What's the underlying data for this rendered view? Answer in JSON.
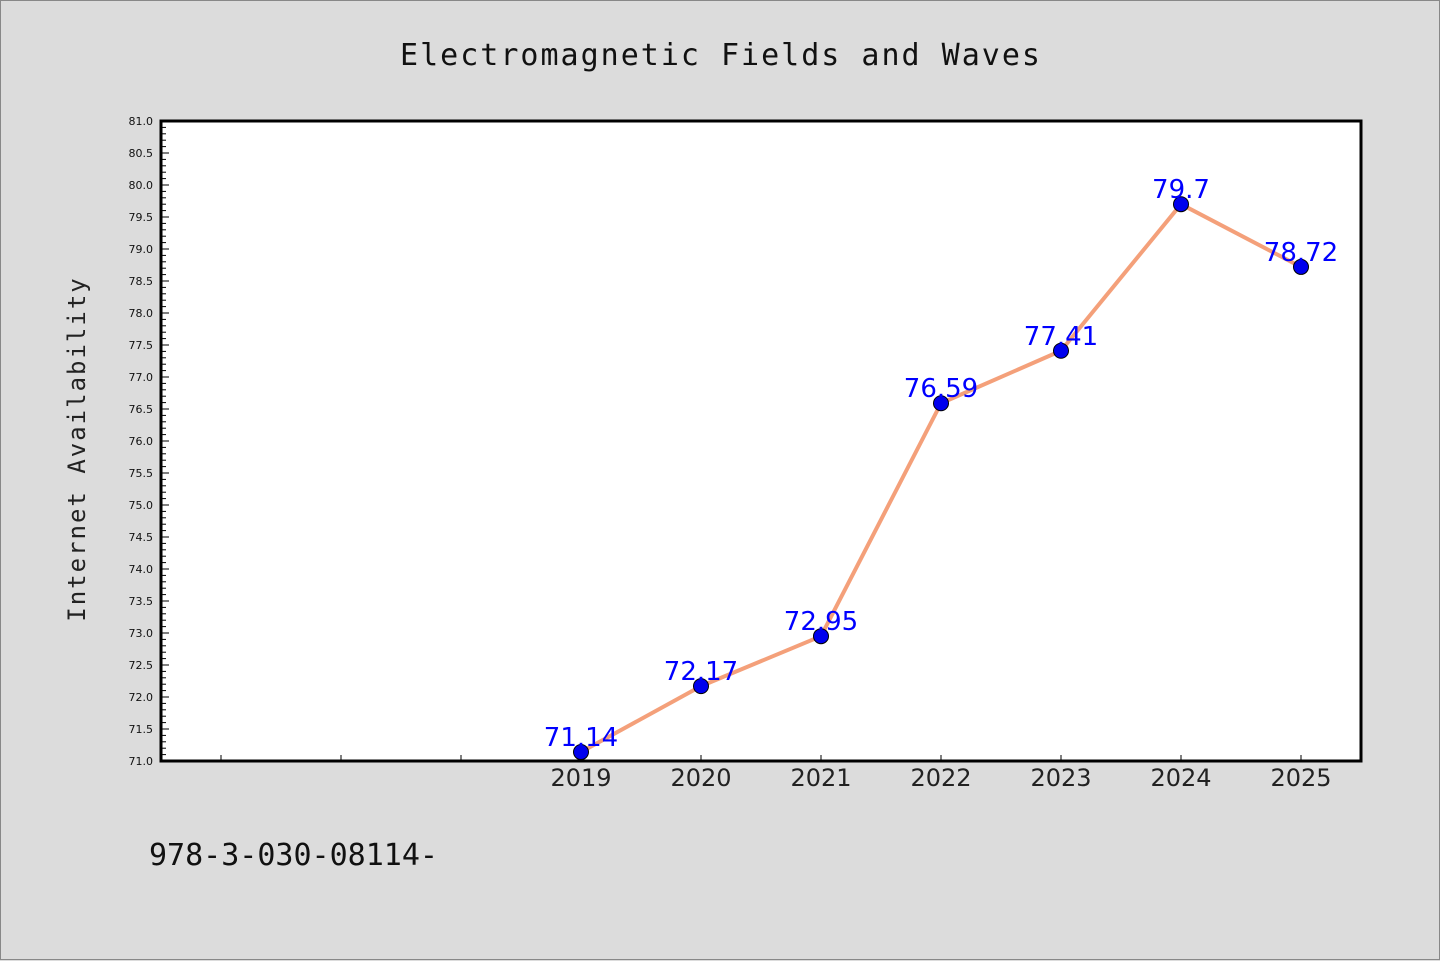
{
  "chart_data": {
    "type": "line",
    "title": "Electromagnetic Fields and Waves",
    "xlabel": "",
    "ylabel": "Internet Availability",
    "x_slots": 10,
    "categories": [
      "2019",
      "2020",
      "2021",
      "2022",
      "2023",
      "2024",
      "2025"
    ],
    "series": [
      {
        "values": [
          71.14,
          72.17,
          72.95,
          76.59,
          77.41,
          79.7,
          78.72
        ],
        "line_color": "#f4a07a",
        "marker_color": "#0000ee"
      }
    ],
    "data_labels": [
      "71.14",
      "72.17",
      "72.95",
      "76.59",
      "77.41",
      "79.7",
      "78.72"
    ],
    "data_label_color": "#0000ff",
    "ylim": [
      71.0,
      81.0
    ],
    "yticks": [
      "71.0",
      "71.5",
      "72.0",
      "72.5",
      "73.0",
      "73.5",
      "74.0",
      "74.5",
      "75.0",
      "75.5",
      "76.0",
      "76.5",
      "77.0",
      "77.5",
      "78.0",
      "78.5",
      "79.0",
      "79.5",
      "80.0",
      "80.5",
      "81.0"
    ],
    "grid": false,
    "legend": "none"
  },
  "footer": {
    "text": "978-3-030-08114-"
  }
}
